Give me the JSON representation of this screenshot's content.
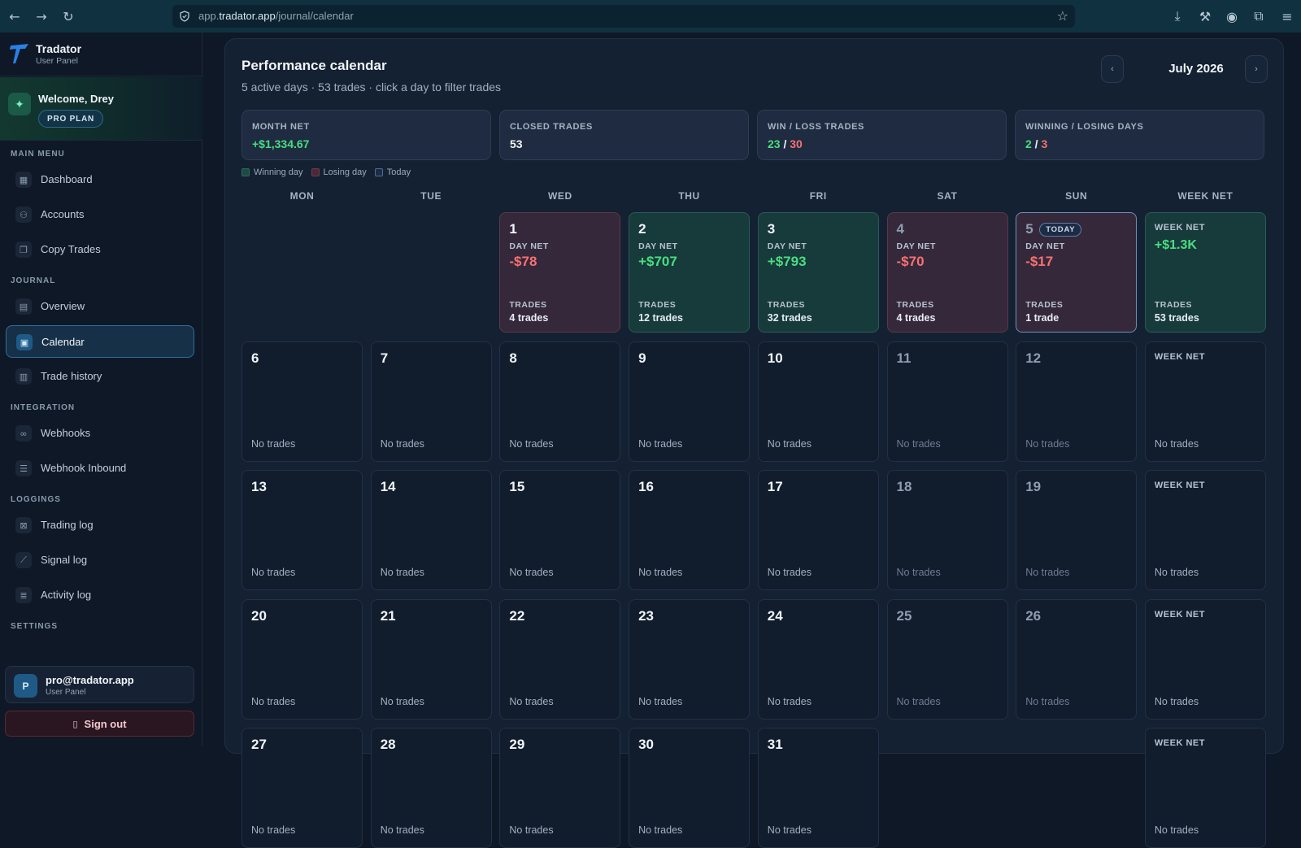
{
  "browser": {
    "url_prefix": "app.",
    "url_host": "tradator.app",
    "url_path": "/journal/calendar"
  },
  "brand": {
    "name": "Tradator",
    "subtitle": "User Panel"
  },
  "welcome": {
    "text": "Welcome, Drey",
    "plan": "PRO PLAN"
  },
  "sidebar": {
    "sections": [
      "MAIN MENU",
      "JOURNAL",
      "INTEGRATION",
      "LOGGINGS",
      "SETTINGS"
    ],
    "items": [
      {
        "label": "Dashboard",
        "icon": "dashboard-icon"
      },
      {
        "label": "Accounts",
        "icon": "users-icon"
      },
      {
        "label": "Copy Trades",
        "icon": "copy-icon"
      },
      {
        "label": "Overview",
        "icon": "overview-icon"
      },
      {
        "label": "Calendar",
        "icon": "calendar-icon",
        "active": true
      },
      {
        "label": "Trade history",
        "icon": "history-icon"
      },
      {
        "label": "Webhooks",
        "icon": "link-icon"
      },
      {
        "label": "Webhook Inbound",
        "icon": "inbound-icon"
      },
      {
        "label": "Trading log",
        "icon": "log-icon"
      },
      {
        "label": "Signal log",
        "icon": "chart-icon"
      },
      {
        "label": "Activity log",
        "icon": "list-icon"
      }
    ]
  },
  "user": {
    "initial": "P",
    "email": "pro@tradator.app",
    "role": "User Panel",
    "signout": "Sign out"
  },
  "calendar": {
    "title": "Performance calendar",
    "subtitle": "5 active days · 53 trades · click a day to filter trades",
    "month": "July 2026",
    "prev": "‹",
    "next": "›"
  },
  "stats": {
    "month_net": {
      "label": "MONTH NET",
      "value": "+$1,334.67"
    },
    "closed": {
      "label": "CLOSED TRADES",
      "value": "53"
    },
    "winloss_trades": {
      "label": "WIN / LOSS TRADES",
      "win": "23",
      "sep": " / ",
      "loss": "30"
    },
    "winloss_days": {
      "label": "WINNING / LOSING DAYS",
      "win": "2",
      "sep": " / ",
      "loss": "3"
    }
  },
  "legend": {
    "winning": "Winning day",
    "losing": "Losing day",
    "today": "Today"
  },
  "days_of_week": [
    "MON",
    "TUE",
    "WED",
    "THU",
    "FRI",
    "SAT",
    "SUN",
    "WEEK NET"
  ],
  "labels": {
    "day_net": "DAY NET",
    "trades": "TRADES",
    "no_trades": "No trades",
    "week_net": "WEEK NET",
    "today": "TODAY"
  },
  "weeks": [
    {
      "days": [
        null,
        null,
        {
          "day": "1",
          "net": "-$78",
          "trades": "4 trades",
          "status": "loss"
        },
        {
          "day": "2",
          "net": "+$707",
          "trades": "12 trades",
          "status": "win"
        },
        {
          "day": "3",
          "net": "+$793",
          "trades": "32 trades",
          "status": "win"
        },
        {
          "day": "4",
          "net": "-$70",
          "trades": "4 trades",
          "status": "loss"
        },
        {
          "day": "5",
          "net": "-$17",
          "trades": "1 trade",
          "status": "loss",
          "today": true
        }
      ],
      "week_net": "+$1.3K",
      "week_trades": "53 trades"
    },
    {
      "days": [
        {
          "day": "6"
        },
        {
          "day": "7"
        },
        {
          "day": "8"
        },
        {
          "day": "9"
        },
        {
          "day": "10"
        },
        {
          "day": "11"
        },
        {
          "day": "12"
        }
      ]
    },
    {
      "days": [
        {
          "day": "13"
        },
        {
          "day": "14"
        },
        {
          "day": "15"
        },
        {
          "day": "16"
        },
        {
          "day": "17"
        },
        {
          "day": "18"
        },
        {
          "day": "19"
        }
      ]
    },
    {
      "days": [
        {
          "day": "20"
        },
        {
          "day": "21"
        },
        {
          "day": "22"
        },
        {
          "day": "23"
        },
        {
          "day": "24"
        },
        {
          "day": "25"
        },
        {
          "day": "26"
        }
      ]
    },
    {
      "days": [
        {
          "day": "27"
        },
        {
          "day": "28"
        },
        {
          "day": "29"
        },
        {
          "day": "30"
        },
        {
          "day": "31"
        },
        null,
        null
      ]
    }
  ],
  "colors": {
    "win": "#4ade80",
    "loss": "#f87171",
    "accent": "#2f6f9a"
  }
}
